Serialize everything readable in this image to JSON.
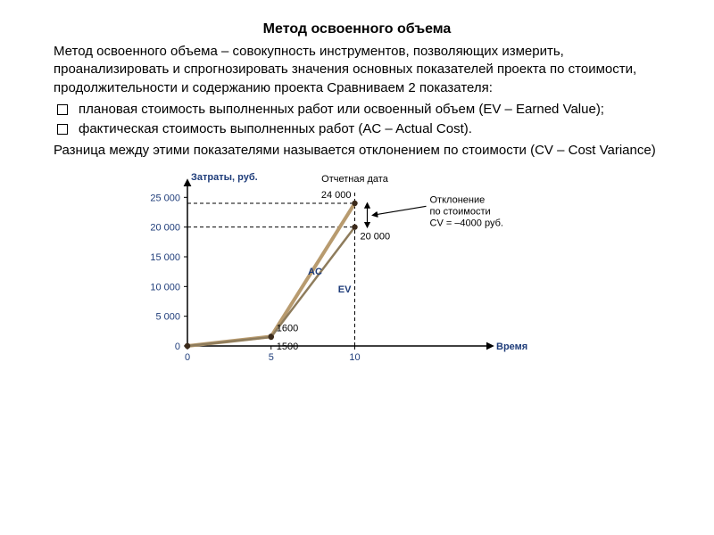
{
  "title": "Метод освоенного объема",
  "para1": "Метод освоенного объема – совокупность инструментов, позволяющих измерить, проанализировать и спрогнозировать значения основных показателей проекта по стоимости, продолжительности и содержанию проекта Сравниваем 2 показателя:",
  "bullets": {
    "b1": "плановая стоимость выполненных работ или освоенный объем (EV – Earned Value);",
    "b2": "фактическая стоимость выполненных работ (AC – Actual Cost)."
  },
  "para2": "Разница между этими показателями называется отклонением по стоимости (CV – Cost Variance)",
  "chart": {
    "title_y": "Затраты, руб.",
    "title_x": "Время",
    "report_date_label": "Отчетная дата",
    "deviation_label_1": "Отклонение",
    "deviation_label_2": "по стоимости",
    "deviation_label_3": "CV = –4000 руб.",
    "ac_label": "AC",
    "ev_label": "EV",
    "xlim": [
      0,
      16
    ],
    "ylim": [
      0,
      27000
    ],
    "xticks": [
      0,
      5,
      10
    ],
    "yticks": [
      0,
      5000,
      10000,
      15000,
      20000,
      25000
    ],
    "ytick_labels": [
      "0",
      "5 000",
      "10 000",
      "15 000",
      "20 000",
      "25 000"
    ],
    "series_ac": {
      "points": [
        [
          0,
          0
        ],
        [
          5,
          1600
        ],
        [
          10,
          24000
        ]
      ],
      "label_val": "1600",
      "end_label": "24 000"
    },
    "series_ev": {
      "points": [
        [
          0,
          0
        ],
        [
          5,
          1500
        ],
        [
          10,
          20000
        ]
      ],
      "label_val": "1500",
      "end_label": "20 000"
    },
    "colors": {
      "axis": "#000000",
      "tick_text": "#1f3d7a",
      "axis_title": "#1f3d7a",
      "line_ac": "#b89b6f",
      "line_ev": "#8e7c5c",
      "point_fill": "#3b2a1a",
      "dash": "#000000",
      "text": "#000000"
    },
    "line_width_ac": 4,
    "line_width_ev": 2.5,
    "tick_fontsize": 11,
    "label_fontsize": 11,
    "plot_bg": "#ffffff"
  }
}
